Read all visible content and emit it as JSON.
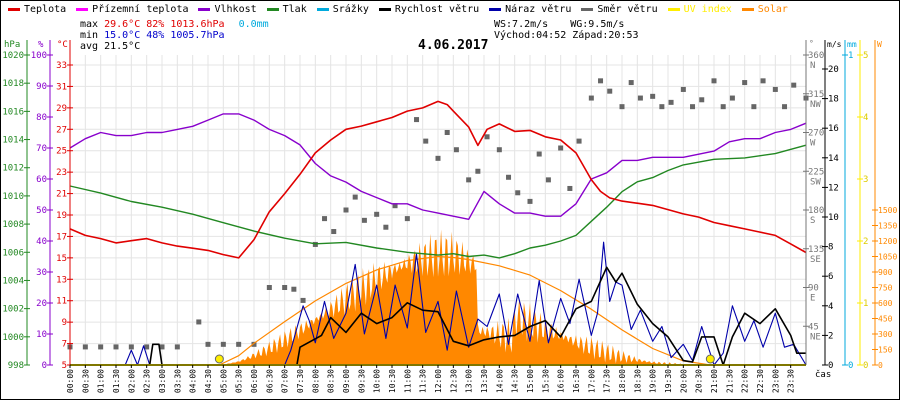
{
  "legend": [
    {
      "label": "Teplota",
      "color": "#e00000"
    },
    {
      "label": "Přízemní teplota",
      "color": "#ff00ff"
    },
    {
      "label": "Vlhkost",
      "color": "#8800cc"
    },
    {
      "label": "Tlak",
      "color": "#228822"
    },
    {
      "label": "Srážky",
      "color": "#00aadd"
    },
    {
      "label": "Rychlost větru",
      "color": "#000000"
    },
    {
      "label": "Náraz větru",
      "color": "#0000aa"
    },
    {
      "label": "Směr větru",
      "color": "#666666"
    },
    {
      "label": "UV index",
      "color": "#ffee00"
    },
    {
      "label": "Solar",
      "color": "#ff8800"
    }
  ],
  "stats": {
    "max_label": "max",
    "max_temp": "29.6°C",
    "max_hum": "82%",
    "max_press": "1013.6hPa",
    "rain": "0.0mm",
    "min_label": "min",
    "min_temp": "15.0°C",
    "min_hum": "48%",
    "min_press": "1005.7hPa",
    "avg_label": "avg",
    "avg_temp": "21.5°C",
    "ws": "WS:7.2m/s",
    "wg": "WG:9.5m/s",
    "sunrise": "Východ:04:52",
    "sunset": "Západ:20:53"
  },
  "chart_data": {
    "type": "line",
    "title": "4.06.2017",
    "xlabel": "čas",
    "x_ticks": [
      "00:00",
      "00:30",
      "01:00",
      "01:30",
      "02:00",
      "02:30",
      "03:00",
      "03:30",
      "04:00",
      "04:30",
      "05:00",
      "05:30",
      "06:00",
      "06:30",
      "07:00",
      "07:30",
      "08:00",
      "08:30",
      "09:00",
      "09:30",
      "10:00",
      "10:30",
      "11:00",
      "11:30",
      "12:00",
      "12:30",
      "13:00",
      "13:30",
      "14:00",
      "14:30",
      "15:00",
      "15:30",
      "16:00",
      "16:30",
      "17:00",
      "17:30",
      "18:00",
      "18:30",
      "19:00",
      "19:30",
      "20:00",
      "20:30",
      "21:00",
      "21:30",
      "22:00",
      "22:30",
      "23:00",
      "23:30"
    ],
    "axes": {
      "pressure": {
        "unit": "hPa",
        "range": [
          998,
          1020
        ],
        "ticks": [
          "1020",
          "1018",
          "1016",
          "1014",
          "1012",
          "1010",
          "1008",
          "1006",
          "1004",
          "1002",
          "1000",
          "998"
        ]
      },
      "humidity": {
        "unit": "%",
        "range": [
          0,
          100
        ],
        "ticks": [
          "100",
          "90",
          "80",
          "70",
          "60",
          "50",
          "40",
          "30",
          "20",
          "10",
          "0"
        ]
      },
      "temperature": {
        "unit": "°C",
        "range": [
          5,
          33
        ],
        "ticks": [
          "33",
          "31",
          "29",
          "27",
          "25",
          "23",
          "21",
          "19",
          "17",
          "15",
          "13",
          "11",
          "9",
          "7",
          "5"
        ]
      },
      "direction": {
        "unit": "°",
        "range": [
          0,
          360
        ],
        "ticks": [
          {
            "v": "360",
            "d": "N"
          },
          {
            "v": "315",
            "d": "NW"
          },
          {
            "v": "270",
            "d": "W"
          },
          {
            "v": "225",
            "d": "SW"
          },
          {
            "v": "180",
            "d": "S"
          },
          {
            "v": "135",
            "d": "SE"
          },
          {
            "v": "90",
            "d": "E"
          },
          {
            "v": "45",
            "d": "NE"
          }
        ]
      },
      "wind": {
        "unit": "m/s",
        "range": [
          0,
          20
        ],
        "ticks": [
          "20",
          "18",
          "16",
          "14",
          "12",
          "10",
          "8",
          "6",
          "4",
          "2",
          "0"
        ]
      },
      "rain": {
        "unit": "mm",
        "range": [
          0,
          1
        ],
        "ticks": [
          "1",
          "0"
        ]
      },
      "uv": {
        "unit": "",
        "range": [
          0,
          5
        ],
        "ticks": [
          "5",
          "4",
          "3",
          "2",
          "1",
          "0"
        ]
      },
      "solar": {
        "unit": "W",
        "range": [
          0,
          1500
        ],
        "ticks": [
          "1500",
          "1350",
          "1200",
          "1050",
          "900",
          "750",
          "600",
          "450",
          "300",
          "150",
          "0"
        ]
      }
    },
    "series": [
      {
        "name": "Teplota",
        "axis": "temperature",
        "hours": [
          0,
          0.5,
          1,
          1.5,
          2,
          2.5,
          3,
          3.5,
          4,
          4.5,
          5,
          5.5,
          6,
          6.5,
          7,
          7.5,
          8,
          8.5,
          9,
          9.5,
          10,
          10.5,
          11,
          11.5,
          12,
          12.3,
          12.5,
          13,
          13.3,
          13.6,
          14,
          14.5,
          15,
          15.5,
          16,
          16.5,
          17,
          17.3,
          17.6,
          18,
          18.5,
          19,
          19.5,
          20,
          20.5,
          21,
          21.5,
          22,
          22.5,
          23,
          23.5,
          24
        ],
        "values": [
          17.7,
          17.1,
          16.8,
          16.4,
          16.6,
          16.8,
          16.4,
          16.1,
          15.9,
          15.7,
          15.3,
          15.0,
          16.7,
          19.3,
          21.0,
          22.8,
          24.8,
          26.0,
          27.0,
          27.3,
          27.7,
          28.1,
          28.7,
          29.0,
          29.6,
          29.3,
          28.7,
          27.2,
          25.5,
          27.0,
          27.5,
          26.8,
          26.9,
          26.3,
          26.0,
          24.8,
          22.3,
          21.2,
          20.6,
          20.3,
          20.1,
          19.9,
          19.5,
          19.1,
          18.8,
          18.3,
          18.0,
          17.7,
          17.4,
          17.1,
          16.3,
          15.5
        ]
      },
      {
        "name": "Vlhkost",
        "axis": "humidity",
        "hours": [
          0,
          0.5,
          1,
          1.5,
          2,
          2.5,
          3,
          3.5,
          4,
          4.5,
          5,
          5.5,
          6,
          6.5,
          7,
          7.5,
          8,
          8.5,
          9,
          9.5,
          10,
          10.5,
          11,
          11.5,
          12,
          12.5,
          13,
          13.5,
          14,
          14.5,
          15,
          15.5,
          16,
          16.5,
          17,
          17.5,
          18,
          18.5,
          19,
          19.5,
          20,
          20.5,
          21,
          21.5,
          22,
          22.5,
          23,
          23.5,
          24
        ],
        "values": [
          70,
          73,
          75,
          74,
          74,
          75,
          75,
          76,
          77,
          79,
          81,
          81,
          79,
          76,
          74,
          71,
          65,
          61,
          59,
          56,
          54,
          52,
          52,
          50,
          49,
          48,
          47,
          56,
          52,
          49,
          49,
          48,
          48,
          52,
          60,
          62,
          66,
          66,
          67,
          67,
          67,
          68,
          69,
          72,
          73,
          73,
          75,
          76,
          78
        ]
      },
      {
        "name": "Tlak",
        "axis": "pressure",
        "hours": [
          0,
          1,
          2,
          3,
          4,
          5,
          6,
          7,
          8,
          9,
          10,
          11,
          12,
          12.5,
          13,
          13.5,
          14,
          14.5,
          15,
          15.5,
          16,
          16.5,
          17,
          17.5,
          18,
          18.5,
          19,
          19.5,
          20,
          21,
          22,
          23,
          24
        ],
        "values": [
          1010.7,
          1010.2,
          1009.6,
          1009.2,
          1008.7,
          1008.1,
          1007.5,
          1007.0,
          1006.6,
          1006.7,
          1006.3,
          1006.0,
          1005.8,
          1005.9,
          1005.7,
          1005.8,
          1005.6,
          1005.9,
          1006.3,
          1006.5,
          1006.8,
          1007.2,
          1008.2,
          1009.2,
          1010.3,
          1011.0,
          1011.3,
          1011.8,
          1012.2,
          1012.6,
          1012.7,
          1013.0,
          1013.6
        ]
      },
      {
        "name": "Solar",
        "axis": "solar",
        "hours": [
          4.87,
          5.5,
          6,
          7,
          8,
          9,
          10,
          11,
          12,
          12.5,
          13,
          14,
          15,
          16,
          17,
          18,
          19,
          20,
          20.88
        ],
        "values": [
          0,
          90,
          210,
          420,
          620,
          790,
          920,
          1010,
          1050,
          1040,
          1020,
          960,
          870,
          720,
          540,
          340,
          160,
          40,
          0
        ]
      },
      {
        "name": "Rychlost větru",
        "axis": "wind",
        "hours": [
          0,
          2.6,
          2.7,
          2.9,
          3.0,
          7.2,
          7.4,
          7.5,
          8.2,
          8.5,
          9,
          9.5,
          10,
          10.5,
          11,
          11.5,
          12,
          12.5,
          13,
          13.5,
          14,
          14.5,
          15,
          15.5,
          16,
          16.5,
          17,
          17.5,
          17.8,
          18,
          18.5,
          19,
          19.5,
          20,
          20.3,
          20.6,
          21,
          21.3,
          21.6,
          22,
          22.5,
          23,
          23.5,
          23.7,
          24
        ],
        "values": [
          0,
          0,
          1.4,
          1.4,
          0,
          0,
          0,
          1.2,
          2.0,
          3.2,
          2.2,
          3.5,
          2.8,
          3.2,
          4.2,
          3.7,
          3.6,
          1.6,
          1.3,
          1.7,
          1.9,
          2.0,
          2.6,
          3.0,
          1.9,
          3.8,
          4.3,
          6.6,
          5.6,
          6.2,
          4.1,
          2.8,
          1.9,
          0.3,
          0.2,
          1.9,
          1.9,
          0,
          1.9,
          3.5,
          2.8,
          3.8,
          2.0,
          0.8,
          0.8
        ]
      },
      {
        "name": "Náraz větru",
        "axis": "wind",
        "hours": [
          0,
          1.8,
          2.0,
          2.2,
          2.4,
          2.6,
          2.8,
          7.0,
          7.2,
          7.4,
          7.6,
          7.8,
          8.0,
          8.3,
          8.6,
          9.0,
          9.3,
          9.6,
          10,
          10.3,
          10.6,
          11,
          11.3,
          11.6,
          12,
          12.3,
          12.6,
          13,
          13.3,
          13.6,
          14,
          14.3,
          14.6,
          15,
          15.3,
          15.6,
          16,
          16.3,
          16.6,
          17,
          17.2,
          17.4,
          17.6,
          17.8,
          18,
          18.3,
          18.6,
          19,
          19.3,
          19.6,
          20,
          20.3,
          20.6,
          21,
          21.3,
          21.6,
          22,
          22.3,
          22.6,
          23,
          23.3,
          23.6,
          24
        ],
        "values": [
          0,
          0,
          1.0,
          0,
          1.3,
          0,
          0,
          0,
          1.0,
          2.5,
          4.0,
          3.0,
          1.5,
          4.3,
          1.8,
          3.5,
          6.8,
          2.1,
          5.4,
          1.8,
          5.4,
          2.5,
          7.5,
          2.2,
          4.3,
          1.0,
          5.0,
          1.2,
          3.1,
          2.6,
          4.8,
          1.4,
          4.8,
          1.6,
          5.7,
          1.5,
          4.5,
          2.8,
          5.8,
          2.0,
          3.5,
          8.3,
          4.3,
          5.6,
          5.4,
          2.4,
          3.7,
          1.6,
          2.6,
          0.5,
          1.4,
          0.3,
          2.6,
          0,
          0.8,
          4.0,
          1.6,
          3.0,
          1.2,
          3.5,
          1.2,
          1.4,
          0
        ]
      }
    ],
    "wind_direction_points": {
      "axis": "direction",
      "unit": "°",
      "hours": [
        0,
        0.5,
        1,
        1.5,
        2,
        2.5,
        3,
        3.5,
        4.2,
        4.5,
        5,
        5.5,
        6,
        6.5,
        7,
        7.3,
        7.6,
        8,
        8.3,
        8.6,
        9,
        9.3,
        9.6,
        10,
        10.3,
        10.6,
        11,
        11.3,
        11.6,
        12,
        12.3,
        12.6,
        13,
        13.3,
        13.6,
        14,
        14.3,
        14.6,
        15,
        15.3,
        15.6,
        16,
        16.3,
        16.6,
        17,
        17.3,
        17.6,
        18,
        18.3,
        18.6,
        19,
        19.3,
        19.6,
        20,
        20.3,
        20.6,
        21,
        21.3,
        21.6,
        22,
        22.3,
        22.6,
        23,
        23.3,
        23.6,
        24
      ],
      "values": [
        21,
        21,
        21,
        21,
        21,
        21,
        21,
        21,
        50,
        24,
        24,
        24,
        24,
        90,
        90,
        88,
        75,
        140,
        170,
        155,
        180,
        195,
        168,
        175,
        160,
        185,
        170,
        285,
        260,
        240,
        270,
        250,
        215,
        225,
        265,
        250,
        218,
        200,
        190,
        245,
        215,
        252,
        205,
        260,
        310,
        330,
        318,
        300,
        328,
        310,
        312,
        300,
        305,
        320,
        300,
        308,
        330,
        300,
        310,
        328,
        300,
        330,
        320,
        300,
        325,
        310
      ]
    }
  }
}
